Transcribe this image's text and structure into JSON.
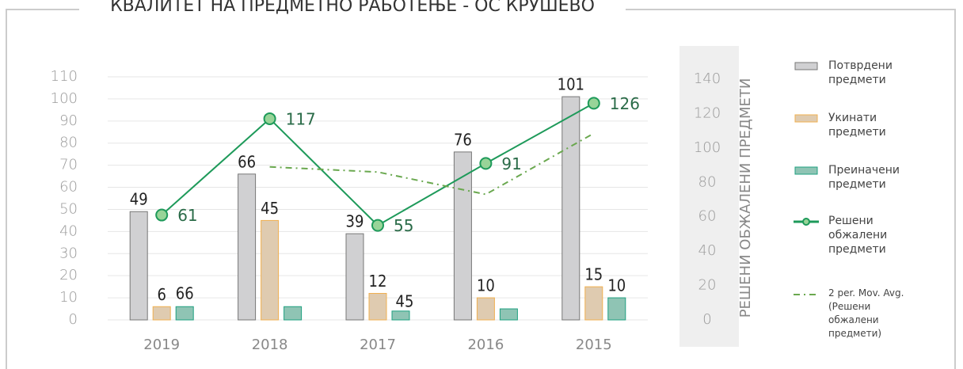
{
  "chart_data": {
    "type": "bar",
    "title": "КВАЛИТЕТ НА ПРЕДМЕТНО РАБОТЕЊЕ - ОС КРУШЕВО",
    "categories": [
      "2019",
      "2018",
      "2017",
      "2016",
      "2015"
    ],
    "series": [
      {
        "name": "Потврдени предмети",
        "type": "bar",
        "color": "#d0d0d2",
        "stroke": "#777",
        "data_labels": true,
        "values": [
          49,
          66,
          39,
          76,
          101
        ]
      },
      {
        "name": "Укинати предмети",
        "type": "bar",
        "color": "#dfcbb0",
        "stroke": "#f0b050",
        "data_labels": true,
        "values": [
          6,
          45,
          12,
          10,
          15
        ]
      },
      {
        "name": "Преиначени предмети",
        "type": "bar",
        "color": "#8fc4b4",
        "stroke": "#1fa080",
        "values": [
          6,
          6,
          4,
          5,
          10
        ],
        "value_labels": [
          null,
          null,
          null,
          null,
          "10"
        ]
      },
      {
        "name": "Решени обжалени предмети",
        "type": "line",
        "axis": "y2",
        "color": "#1e9a5a",
        "marker": "#98d498",
        "data_labels": true,
        "values": [
          61,
          117,
          55,
          91,
          126
        ]
      },
      {
        "name": "2 per. Mov. Avg. (Решени обжалени предмети)",
        "type": "line",
        "axis": "y2",
        "color": "#6aa84f",
        "dash": "8 5 2 5",
        "values": [
          null,
          89,
          86,
          73,
          108.5
        ]
      }
    ],
    "annotations": [
      "66",
      "45"
    ],
    "ylim": [
      0,
      110
    ],
    "yticks": [
      0,
      10,
      20,
      30,
      40,
      50,
      60,
      70,
      80,
      90,
      100,
      110
    ],
    "y2lim": [
      0,
      140
    ],
    "y2ticks": [
      0,
      20,
      40,
      60,
      80,
      100,
      120,
      140
    ],
    "y2label": "РЕШЕНИ ОБЖАЛЕНИ ПРЕДМЕТИ",
    "grid": true
  }
}
